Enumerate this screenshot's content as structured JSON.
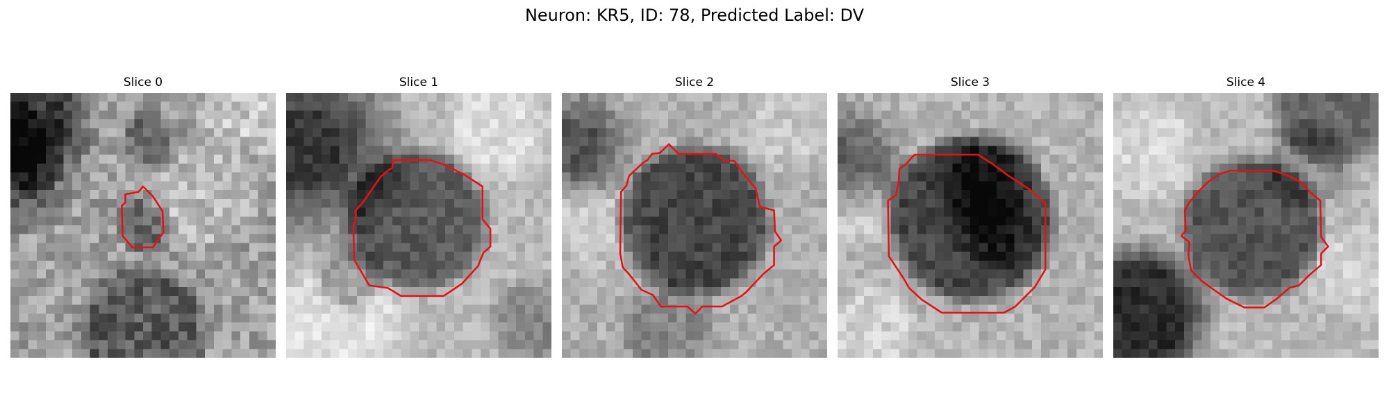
{
  "figure": {
    "title": "Neuron: KR5, ID: 78, Predicted Label: DV"
  },
  "panels": [
    {
      "title": "Slice 0"
    },
    {
      "title": "Slice 1"
    },
    {
      "title": "Slice 2"
    },
    {
      "title": "Slice 3"
    },
    {
      "title": "Slice 4"
    }
  ],
  "colors": {
    "contour": "#e41313",
    "background": "#ffffff"
  }
}
